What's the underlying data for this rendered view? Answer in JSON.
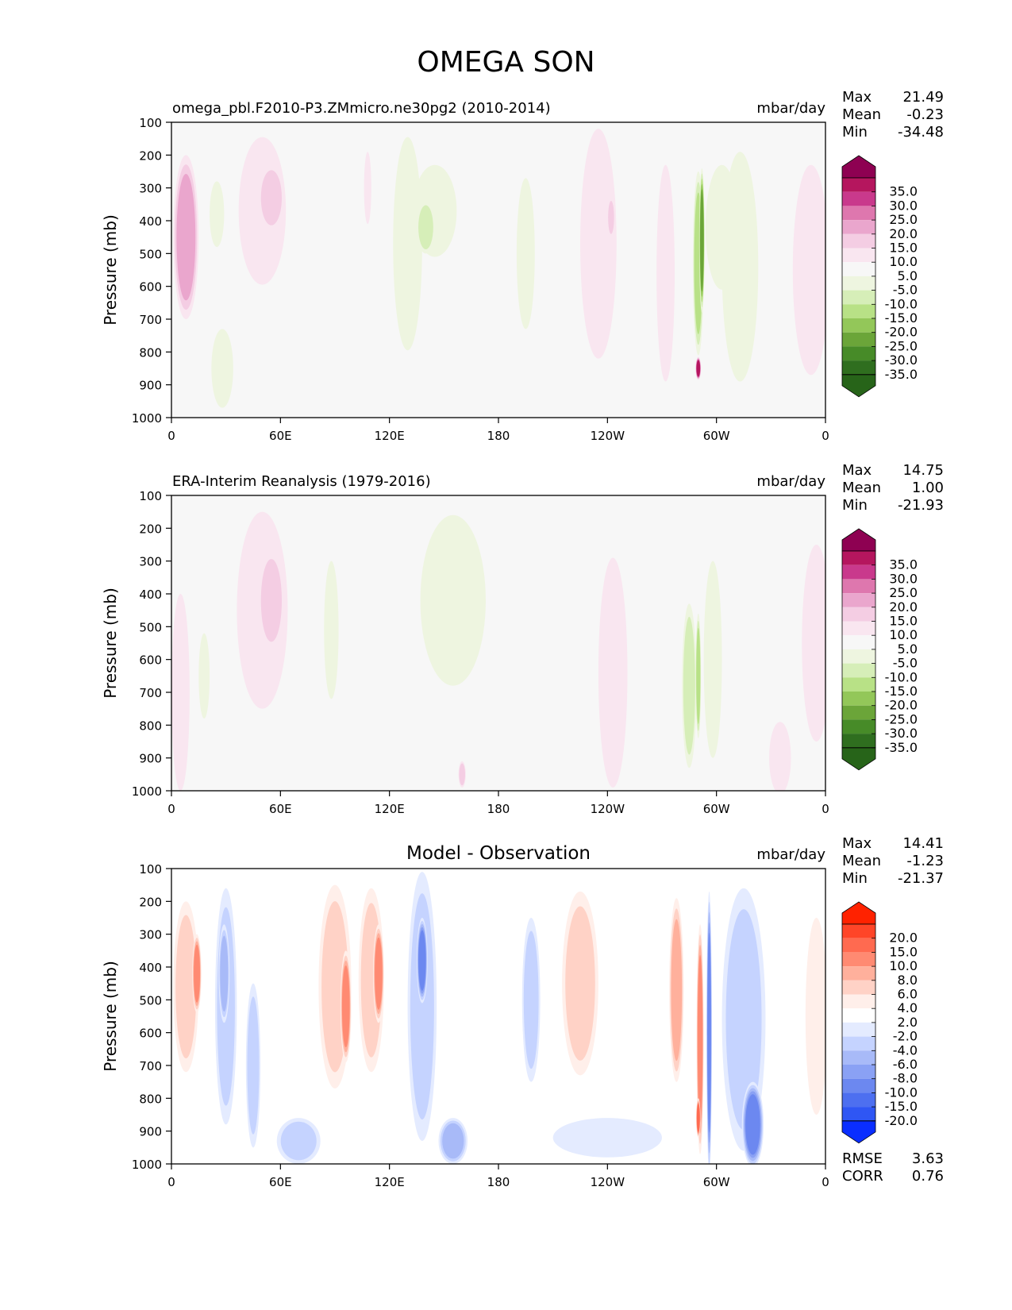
{
  "figure": {
    "title": "OMEGA SON"
  },
  "chart_data": [
    {
      "type": "heatmap",
      "title": "",
      "left_title": "omega_pbl.F2010-P3.ZMmicro.ne30pg2 (2010-2014)",
      "units": "mbar/day",
      "ylabel": "Pressure (mb)",
      "xlabel": "",
      "x_ticks": [
        "0",
        "60E",
        "120E",
        "180",
        "120W",
        "60W",
        "0"
      ],
      "x_tick_values": [
        0,
        60,
        120,
        180,
        240,
        300,
        360
      ],
      "y_ticks": [
        "100",
        "200",
        "300",
        "400",
        "500",
        "600",
        "700",
        "800",
        "900",
        "1000"
      ],
      "xlim": [
        0,
        360
      ],
      "ylim": [
        1000,
        100
      ],
      "stats": {
        "max_label": "Max",
        "max": "21.49",
        "mean_label": "Mean",
        "mean": "-0.23",
        "min_label": "Min",
        "min": "-34.48"
      },
      "colorbar": {
        "labels": [
          "35.0",
          "30.0",
          "25.0",
          "20.0",
          "15.0",
          "10.0",
          "5.0",
          "-5.0",
          "-10.0",
          "-15.0",
          "-20.0",
          "-25.0",
          "-30.0",
          "-35.0"
        ],
        "colors": [
          "#8e0152",
          "#b5165e",
          "#c9398c",
          "#de77ae",
          "#eaa6cd",
          "#f4cde3",
          "#f9e6f0",
          "#f7f7f7",
          "#eef5e0",
          "#d6eeb8",
          "#b8e186",
          "#93c759",
          "#6ba539",
          "#478b28",
          "#2f6e1f",
          "#276419"
        ]
      },
      "blobs": [
        {
          "lon": 8,
          "p": 450,
          "w": 7,
          "h": 500,
          "v": 15
        },
        {
          "lon": 25,
          "p": 380,
          "w": 4,
          "h": 200,
          "v": -8
        },
        {
          "lon": 28,
          "p": 850,
          "w": 6,
          "h": 240,
          "v": -5
        },
        {
          "lon": 50,
          "p": 370,
          "w": 13,
          "h": 450,
          "v": 7
        },
        {
          "lon": 55,
          "p": 330,
          "w": 7,
          "h": 200,
          "v": 13
        },
        {
          "lon": 108,
          "p": 300,
          "w": 2,
          "h": 220,
          "v": 7
        },
        {
          "lon": 130,
          "p": 470,
          "w": 8,
          "h": 650,
          "v": -7
        },
        {
          "lon": 145,
          "p": 370,
          "w": 12,
          "h": 280,
          "v": -9
        },
        {
          "lon": 140,
          "p": 420,
          "w": 5,
          "h": 160,
          "v": -14
        },
        {
          "lon": 195,
          "p": 500,
          "w": 5,
          "h": 460,
          "v": -7
        },
        {
          "lon": 235,
          "p": 470,
          "w": 10,
          "h": 700,
          "v": 7
        },
        {
          "lon": 242,
          "p": 390,
          "w": 2,
          "h": 120,
          "v": 13
        },
        {
          "lon": 272,
          "p": 560,
          "w": 5,
          "h": 660,
          "v": 6
        },
        {
          "lon": 290,
          "p": 530,
          "w": 3,
          "h": 560,
          "v": -16
        },
        {
          "lon": 292,
          "p": 460,
          "w": 1.5,
          "h": 440,
          "v": -28
        },
        {
          "lon": 290,
          "p": 850,
          "w": 1.5,
          "h": 70,
          "v": 32
        },
        {
          "lon": 303,
          "p": 420,
          "w": 9,
          "h": 380,
          "v": -8
        },
        {
          "lon": 313,
          "p": 540,
          "w": 10,
          "h": 700,
          "v": -6
        },
        {
          "lon": 352,
          "p": 550,
          "w": 10,
          "h": 640,
          "v": 8
        }
      ]
    },
    {
      "type": "heatmap",
      "title": "",
      "left_title": "ERA-Interim Reanalysis (1979-2016)",
      "units": "mbar/day",
      "ylabel": "Pressure (mb)",
      "xlabel": "",
      "x_ticks": [
        "0",
        "60E",
        "120E",
        "180",
        "120W",
        "60W",
        "0"
      ],
      "x_tick_values": [
        0,
        60,
        120,
        180,
        240,
        300,
        360
      ],
      "y_ticks": [
        "100",
        "200",
        "300",
        "400",
        "500",
        "600",
        "700",
        "800",
        "900",
        "1000"
      ],
      "xlim": [
        0,
        360
      ],
      "ylim": [
        1000,
        100
      ],
      "stats": {
        "max_label": "Max",
        "max": "14.75",
        "mean_label": "Mean",
        "mean": "1.00",
        "min_label": "Min",
        "min": "-21.93"
      },
      "colorbar": {
        "labels": [
          "35.0",
          "30.0",
          "25.0",
          "20.0",
          "15.0",
          "10.0",
          "5.0",
          "-5.0",
          "-10.0",
          "-15.0",
          "-20.0",
          "-25.0",
          "-30.0",
          "-35.0"
        ],
        "colors": [
          "#8e0152",
          "#b5165e",
          "#c9398c",
          "#de77ae",
          "#eaa6cd",
          "#f4cde3",
          "#f9e6f0",
          "#f7f7f7",
          "#eef5e0",
          "#d6eeb8",
          "#b8e186",
          "#93c759",
          "#6ba539",
          "#478b28",
          "#2f6e1f",
          "#276419"
        ]
      },
      "blobs": [
        {
          "lon": 5,
          "p": 700,
          "w": 5,
          "h": 600,
          "v": 6
        },
        {
          "lon": 18,
          "p": 650,
          "w": 3,
          "h": 260,
          "v": -8
        },
        {
          "lon": 50,
          "p": 450,
          "w": 14,
          "h": 600,
          "v": 7
        },
        {
          "lon": 55,
          "p": 420,
          "w": 7,
          "h": 300,
          "v": 13
        },
        {
          "lon": 88,
          "p": 510,
          "w": 4,
          "h": 420,
          "v": -6
        },
        {
          "lon": 155,
          "p": 420,
          "w": 18,
          "h": 520,
          "v": -6
        },
        {
          "lon": 160,
          "p": 950,
          "w": 2,
          "h": 80,
          "v": 11
        },
        {
          "lon": 243,
          "p": 640,
          "w": 8,
          "h": 700,
          "v": 6
        },
        {
          "lon": 285,
          "p": 680,
          "w": 4,
          "h": 500,
          "v": -10
        },
        {
          "lon": 290,
          "p": 650,
          "w": 1.5,
          "h": 380,
          "v": -18
        },
        {
          "lon": 298,
          "p": 600,
          "w": 5,
          "h": 600,
          "v": -6
        },
        {
          "lon": 335,
          "p": 900,
          "w": 6,
          "h": 220,
          "v": 8
        },
        {
          "lon": 355,
          "p": 550,
          "w": 8,
          "h": 600,
          "v": 6
        }
      ]
    },
    {
      "type": "heatmap",
      "title": "Model - Observation",
      "left_title": "",
      "units": "mbar/day",
      "ylabel": "Pressure (mb)",
      "xlabel": "",
      "x_ticks": [
        "0",
        "60E",
        "120E",
        "180",
        "120W",
        "60W",
        "0"
      ],
      "x_tick_values": [
        0,
        60,
        120,
        180,
        240,
        300,
        360
      ],
      "y_ticks": [
        "100",
        "200",
        "300",
        "400",
        "500",
        "600",
        "700",
        "800",
        "900",
        "1000"
      ],
      "xlim": [
        0,
        360
      ],
      "ylim": [
        1000,
        100
      ],
      "stats": {
        "max_label": "Max",
        "max": "14.41",
        "mean_label": "Mean",
        "mean": "-1.23",
        "min_label": "Min",
        "min": "-21.37"
      },
      "extra_stats": {
        "rmse_label": "RMSE",
        "rmse": "3.63",
        "corr_label": "CORR",
        "corr": "0.76"
      },
      "colorbar": {
        "labels": [
          "20.0",
          "15.0",
          "10.0",
          "8.0",
          "6.0",
          "4.0",
          "2.0",
          "-2.0",
          "-4.0",
          "-6.0",
          "-8.0",
          "-10.0",
          "-15.0",
          "-20.0"
        ],
        "colors": [
          "#ff2200",
          "#ff4528",
          "#ff6a50",
          "#ff8a72",
          "#ffb09c",
          "#ffd2c6",
          "#ffefea",
          "#ffffff",
          "#e4ebff",
          "#c5d3ff",
          "#a8baf8",
          "#8aa1f4",
          "#6c88f0",
          "#4d6ff0",
          "#2f56f4",
          "#0a2eff"
        ]
      },
      "blobs": [
        {
          "lon": 8,
          "p": 460,
          "w": 7,
          "h": 520,
          "v": 5
        },
        {
          "lon": 14,
          "p": 420,
          "w": 2.5,
          "h": 240,
          "v": 8
        },
        {
          "lon": 30,
          "p": 520,
          "w": 6,
          "h": 720,
          "v": -4
        },
        {
          "lon": 29,
          "p": 420,
          "w": 3,
          "h": 300,
          "v": -7
        },
        {
          "lon": 45,
          "p": 700,
          "w": 4,
          "h": 500,
          "v": -4
        },
        {
          "lon": 70,
          "p": 930,
          "w": 12,
          "h": 140,
          "v": -5
        },
        {
          "lon": 90,
          "p": 460,
          "w": 9,
          "h": 620,
          "v": 5
        },
        {
          "lon": 96,
          "p": 520,
          "w": 3,
          "h": 340,
          "v": 8
        },
        {
          "lon": 110,
          "p": 440,
          "w": 7,
          "h": 560,
          "v": 5
        },
        {
          "lon": 114,
          "p": 420,
          "w": 3,
          "h": 300,
          "v": 8
        },
        {
          "lon": 138,
          "p": 520,
          "w": 8,
          "h": 820,
          "v": -5
        },
        {
          "lon": 138,
          "p": 380,
          "w": 3,
          "h": 260,
          "v": -10
        },
        {
          "lon": 155,
          "p": 930,
          "w": 8,
          "h": 140,
          "v": -6
        },
        {
          "lon": 198,
          "p": 500,
          "w": 5,
          "h": 500,
          "v": -5
        },
        {
          "lon": 225,
          "p": 450,
          "w": 10,
          "h": 560,
          "v": 5
        },
        {
          "lon": 240,
          "p": 920,
          "w": 30,
          "h": 120,
          "v": -3
        },
        {
          "lon": 278,
          "p": 470,
          "w": 4,
          "h": 560,
          "v": 6
        },
        {
          "lon": 291,
          "p": 620,
          "w": 2,
          "h": 700,
          "v": 9
        },
        {
          "lon": 290,
          "p": 860,
          "w": 1.2,
          "h": 120,
          "v": 14
        },
        {
          "lon": 296,
          "p": 600,
          "w": 1.5,
          "h": 860,
          "v": -14
        },
        {
          "lon": 315,
          "p": 560,
          "w": 12,
          "h": 800,
          "v": -5
        },
        {
          "lon": 320,
          "p": 880,
          "w": 6,
          "h": 260,
          "v": -10
        },
        {
          "lon": 355,
          "p": 550,
          "w": 6,
          "h": 600,
          "v": 3
        }
      ]
    }
  ]
}
